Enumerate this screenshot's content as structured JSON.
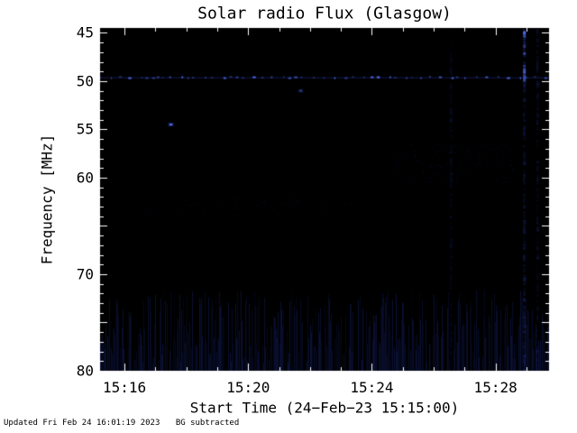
{
  "footer": {
    "updated": "Updated Fri Feb 24 16:01:19 2023",
    "bg_subtracted": "BG subtracted"
  },
  "chart_data": {
    "type": "heatmap",
    "title": "Solar radio Flux (Glasgow)",
    "xlabel": "Start Time (24−Feb−23 15:15:00)",
    "ylabel": "Frequency [MHz]",
    "x_axis": {
      "unit": "minutes after 15:00 on 24-Feb-23",
      "start": 15.18,
      "end": 29.76,
      "major_ticks": [
        {
          "minute": 16,
          "label": "15:16"
        },
        {
          "minute": 20,
          "label": "15:20"
        },
        {
          "minute": 24,
          "label": "15:24"
        },
        {
          "minute": 28,
          "label": "15:28"
        }
      ],
      "minor_tick_every": 1
    },
    "y_axis": {
      "unit": "MHz",
      "top": 44.4,
      "bottom": 80.1,
      "inverted": true,
      "major_ticks": [
        {
          "mhz": 45,
          "label": "45"
        },
        {
          "mhz": 50,
          "label": "50"
        },
        {
          "mhz": 55,
          "label": "55"
        },
        {
          "mhz": 60,
          "label": "60"
        },
        {
          "mhz": 65,
          "label": ""
        },
        {
          "mhz": 70,
          "label": "70"
        },
        {
          "mhz": 75,
          "label": ""
        },
        {
          "mhz": 80,
          "label": "80"
        }
      ],
      "minor_tick_every": 1
    },
    "colors": {
      "page_background": "#ffffff",
      "plot_background": "#000000",
      "frame": "#ffffff",
      "signal": "#4a6aff",
      "text": "#000000"
    },
    "features": {
      "rfi_line": {
        "freq_mhz": 49.6,
        "description": "persistent horizontal interference line of bright blue dashes across full time range",
        "dot_spacing_min": 0.28
      },
      "bursts": [
        {
          "t_min": 17.5,
          "freq_mhz": 54.5,
          "intensity": 0.9
        },
        {
          "t_min": 21.7,
          "freq_mhz": 51.0,
          "intensity": 0.45
        }
      ],
      "vertical_streaks": [
        {
          "t_min": 26.55,
          "intensity": 0.1,
          "bright_top": false
        },
        {
          "t_min": 28.92,
          "intensity": 0.25,
          "bright_top": true
        },
        {
          "t_min": 29.35,
          "intensity": 0.14,
          "bright_top": false
        }
      ],
      "noise_band": {
        "freq_from": 71.5,
        "freq_to": 80.1,
        "density": 0.7,
        "max_alpha": 0.28,
        "description": "faint vertical striated noise filling the bottom of the band"
      },
      "faint_patches": [
        {
          "t_from": 24.6,
          "t_to": 28.6,
          "freq_from": 56.5,
          "freq_to": 60.5,
          "density": 0.18,
          "alpha": 0.12
        },
        {
          "t_from": 16.5,
          "t_to": 23.5,
          "freq_from": 62.0,
          "freq_to": 64.0,
          "density": 0.1,
          "alpha": 0.1
        }
      ],
      "background_noise": {
        "count": 2600,
        "max_alpha": 0.05
      }
    }
  }
}
